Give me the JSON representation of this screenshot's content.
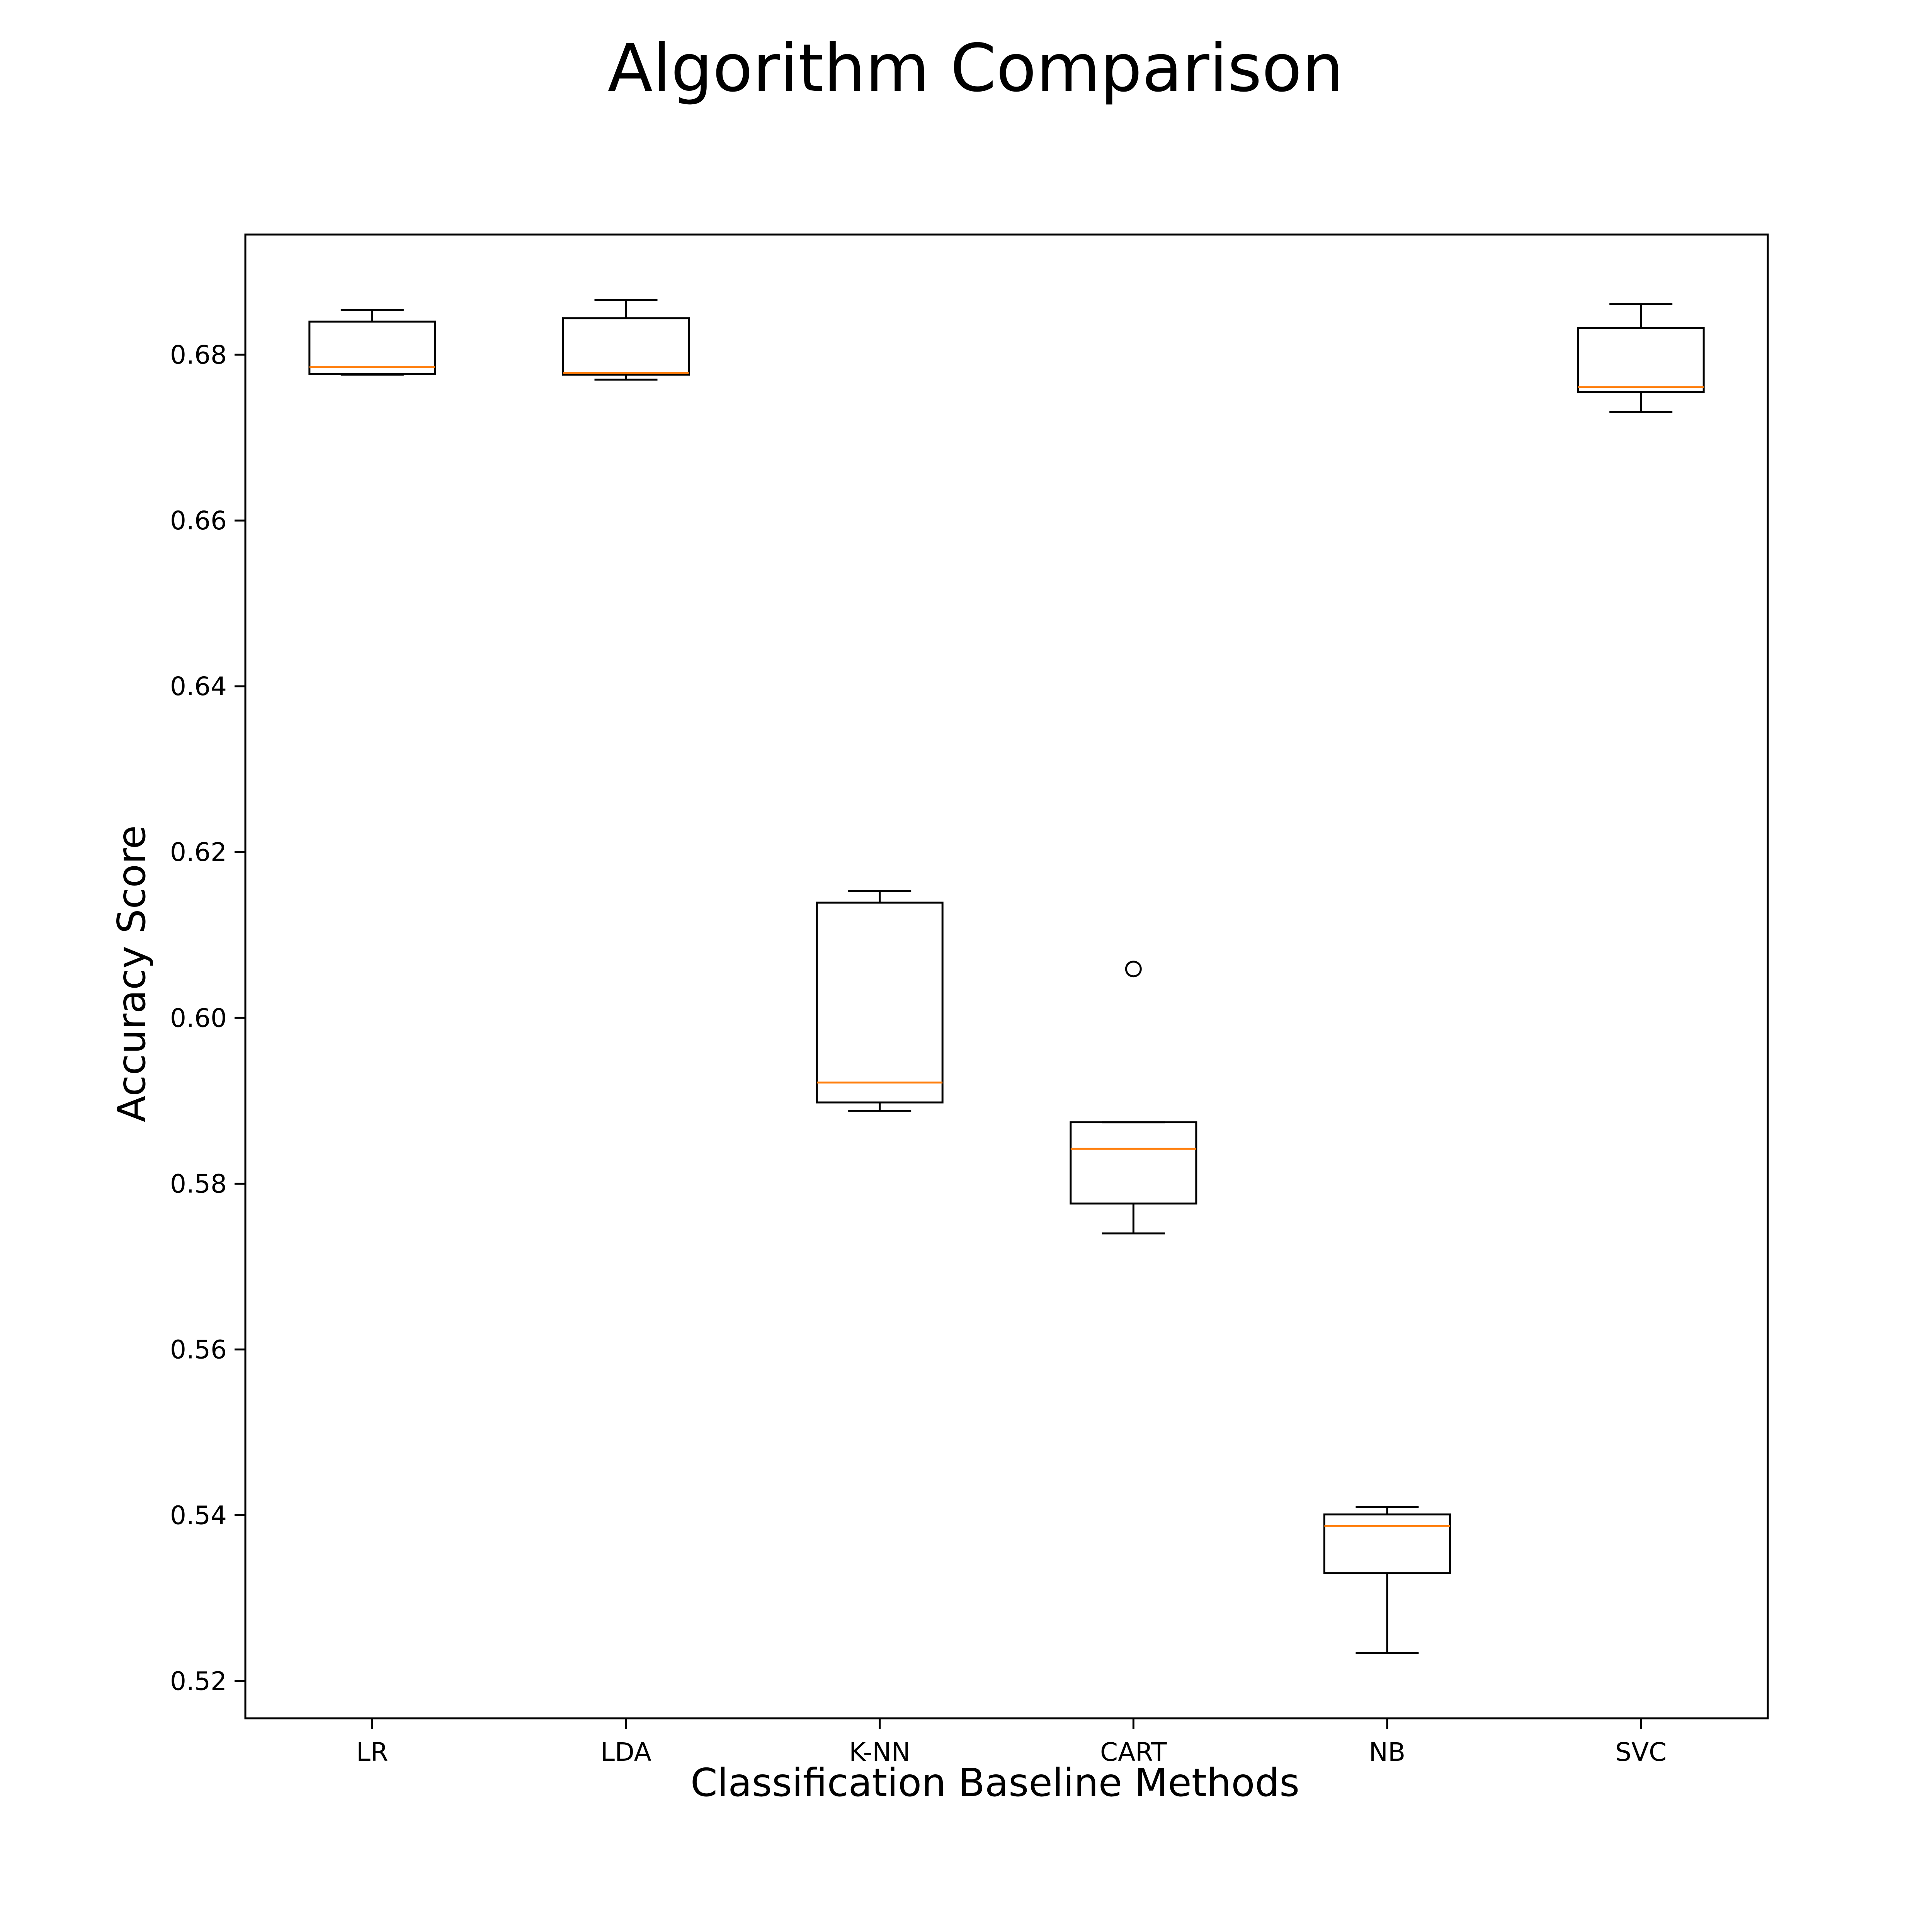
{
  "chart_data": {
    "type": "boxplot",
    "title": "Algorithm Comparison",
    "xlabel": "Classification Baseline Methods",
    "ylabel": "Accuracy Score",
    "ylim": [
      0.5155,
      0.6945
    ],
    "yticks": [
      0.52,
      0.54,
      0.56,
      0.58,
      0.6,
      0.62,
      0.64,
      0.66,
      0.68
    ],
    "ytick_labels": [
      "0.52",
      "0.54",
      "0.56",
      "0.58",
      "0.60",
      "0.62",
      "0.64",
      "0.66",
      "0.68"
    ],
    "grid": false,
    "colors": {
      "box": "#000000",
      "median": "#ff7f0e",
      "frame": "#000000"
    },
    "categories": [
      "LR",
      "LDA",
      "K-NN",
      "CART",
      "NB",
      "SVC"
    ],
    "boxes": [
      {
        "category": "LR",
        "whisker_low": 0.6776,
        "q1": 0.6777,
        "median": 0.6785,
        "q3": 0.684,
        "whisker_high": 0.6854,
        "outliers": []
      },
      {
        "category": "LDA",
        "whisker_low": 0.677,
        "q1": 0.6776,
        "median": 0.6778,
        "q3": 0.6844,
        "whisker_high": 0.6866,
        "outliers": []
      },
      {
        "category": "K-NN",
        "whisker_low": 0.5888,
        "q1": 0.5898,
        "median": 0.5922,
        "q3": 0.6139,
        "whisker_high": 0.6153,
        "outliers": []
      },
      {
        "category": "CART",
        "whisker_low": 0.574,
        "q1": 0.5776,
        "median": 0.5842,
        "q3": 0.5874,
        "whisker_high": 0.5874,
        "outliers": [
          0.6059
        ]
      },
      {
        "category": "NB",
        "whisker_low": 0.5234,
        "q1": 0.533,
        "median": 0.5387,
        "q3": 0.5401,
        "whisker_high": 0.541,
        "outliers": []
      },
      {
        "category": "SVC",
        "whisker_low": 0.6731,
        "q1": 0.6755,
        "median": 0.6761,
        "q3": 0.6832,
        "whisker_high": 0.6861,
        "outliers": []
      }
    ]
  }
}
